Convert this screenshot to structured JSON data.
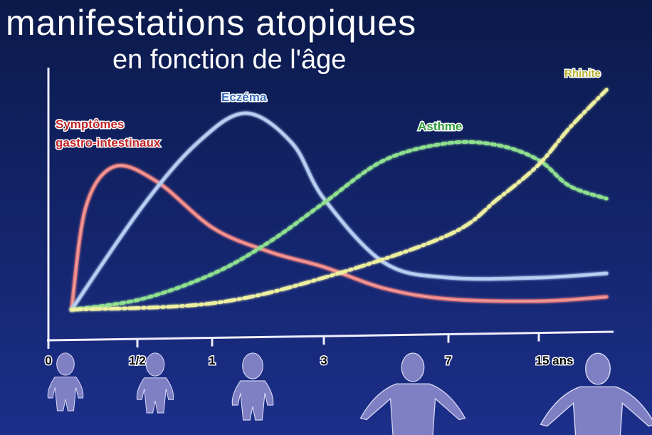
{
  "header": {
    "title": "manifestations atopiques",
    "subtitle": "en fonction de l'âge"
  },
  "chart_data": {
    "type": "line",
    "title": "manifestations atopiques en fonction de l'âge",
    "xlabel": "",
    "ylabel": "",
    "x_ticks": [
      {
        "age": 0,
        "label": "0"
      },
      {
        "age": 0.5,
        "label": "1/2"
      },
      {
        "age": 1,
        "label": "1"
      },
      {
        "age": 3,
        "label": "3"
      },
      {
        "age": 7,
        "label": "7"
      },
      {
        "age": 15,
        "label": "15 ans"
      }
    ],
    "x_scale": "non-linear (equal-ish spacing between ticks)",
    "ylim": [
      0,
      105
    ],
    "grid": false,
    "legend": "inline labels",
    "series": [
      {
        "name": "Symptômes gastro-intestinaux",
        "name_lines": [
          "Symptômes",
          "gastro-intestinaux"
        ],
        "color": "#e87a7a",
        "style": "solid",
        "x": [
          0.13,
          0.21,
          0.37,
          0.63,
          1.03,
          2.04,
          3,
          4.94,
          7,
          15,
          21
        ],
        "y": [
          0,
          48,
          67,
          60,
          38,
          27,
          20,
          10,
          5,
          4,
          6
        ]
      },
      {
        "name": "Eczéma",
        "color": "#a9c2ec",
        "style": "solid",
        "x": [
          0.13,
          0.53,
          0.9,
          1.6,
          2.43,
          3,
          4.94,
          7,
          15,
          21
        ],
        "y": [
          0,
          48,
          78,
          92,
          78,
          52,
          22,
          15,
          15,
          17
        ]
      },
      {
        "name": "Asthme",
        "color": "#8fe08f",
        "style": "dotted",
        "x": [
          0.13,
          0.53,
          1.03,
          2.04,
          3,
          4.94,
          7,
          11.4,
          15,
          17.7,
          21
        ],
        "y": [
          0,
          5,
          17,
          32,
          50,
          70,
          78,
          77,
          70,
          58,
          52
        ]
      },
      {
        "name": "Rhinite",
        "color": "#eef0a0",
        "style": "dash-dot",
        "x": [
          0.13,
          1,
          3,
          7,
          11.4,
          15,
          17.7,
          21
        ],
        "y": [
          0,
          3,
          15,
          35,
          52,
          68,
          85,
          103
        ]
      }
    ]
  },
  "figures": [
    "baby-0",
    "baby-1/2",
    "toddler-1",
    "child-3-7",
    "teen-15"
  ]
}
